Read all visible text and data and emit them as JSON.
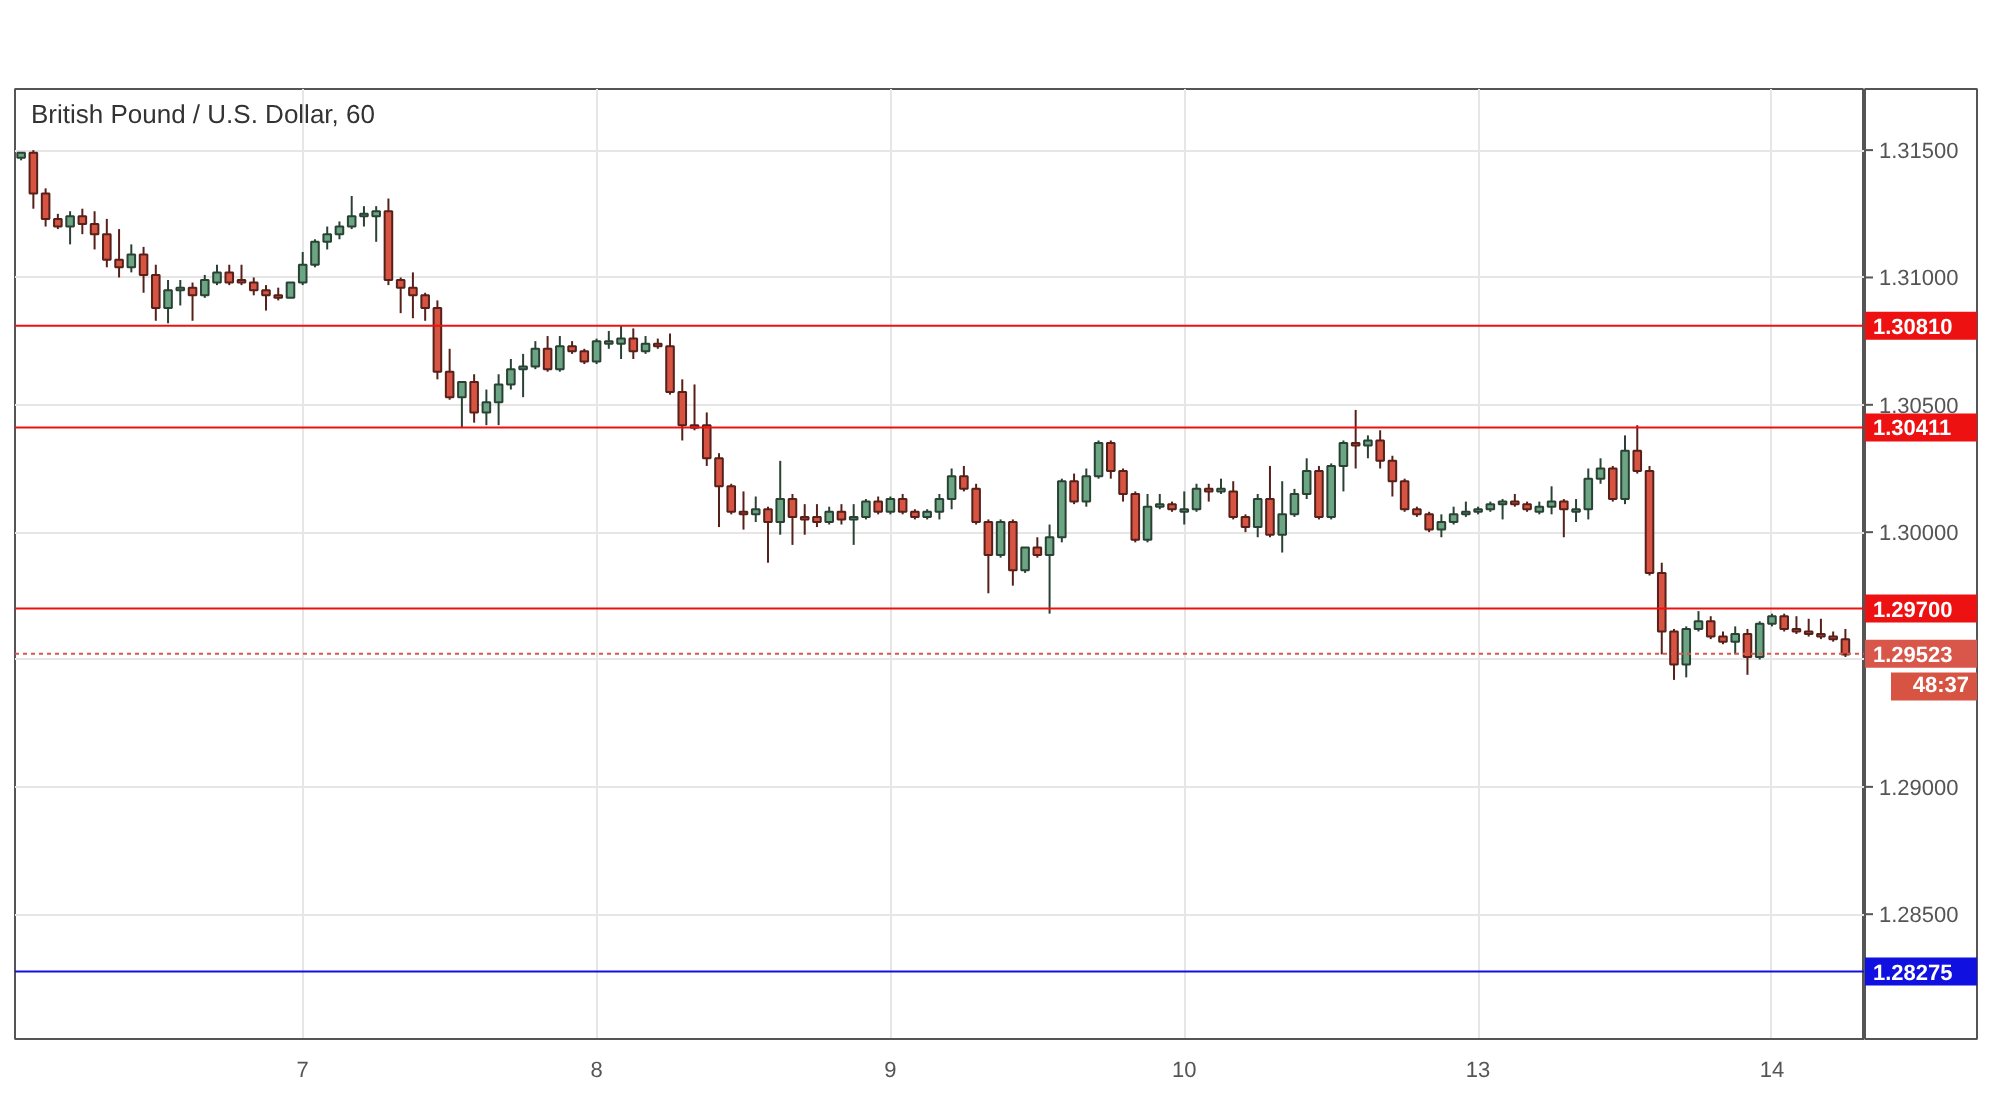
{
  "chart_data": {
    "type": "candlestick",
    "title": "British Pound / U.S. Dollar, 60",
    "categories": [
      null,
      null,
      null,
      null,
      null,
      null,
      null,
      null,
      null,
      null,
      null,
      null,
      null,
      null,
      null,
      null,
      null,
      null,
      null,
      null,
      null,
      null,
      null,
      "7",
      null,
      null,
      null,
      null,
      null,
      null,
      null,
      null,
      null,
      null,
      null,
      null,
      null,
      null,
      null,
      null,
      null,
      null,
      null,
      null,
      null,
      null,
      null,
      "8",
      null,
      null,
      null,
      null,
      null,
      null,
      null,
      null,
      null,
      null,
      null,
      null,
      null,
      null,
      null,
      null,
      null,
      null,
      null,
      null,
      null,
      null,
      null,
      "9",
      null,
      null,
      null,
      null,
      null,
      null,
      null,
      null,
      null,
      null,
      null,
      null,
      null,
      null,
      null,
      null,
      null,
      null,
      null,
      null,
      null,
      null,
      null,
      "10",
      null,
      null,
      null,
      null,
      null,
      null,
      null,
      null,
      null,
      null,
      null,
      null,
      null,
      null,
      null,
      null,
      null,
      null,
      null,
      null,
      null,
      null,
      null,
      "13",
      null,
      null,
      null,
      null,
      null,
      null,
      null,
      null,
      null,
      null,
      null,
      null,
      null,
      null,
      null,
      null,
      null,
      null,
      null,
      null,
      null,
      null,
      null,
      "14",
      null,
      null,
      null,
      null,
      null,
      null
    ],
    "ohlc": [
      [
        1.3147,
        1.3149,
        1.3146,
        1.3149
      ],
      [
        1.3149,
        1.315,
        1.3127,
        1.3133
      ],
      [
        1.3133,
        1.3135,
        1.312,
        1.3123
      ],
      [
        1.3123,
        1.3125,
        1.3119,
        1.312
      ],
      [
        1.312,
        1.3126,
        1.3113,
        1.3124
      ],
      [
        1.3124,
        1.3127,
        1.3117,
        1.3121
      ],
      [
        1.3121,
        1.3126,
        1.3111,
        1.3117
      ],
      [
        1.3117,
        1.3123,
        1.3104,
        1.3107
      ],
      [
        1.3107,
        1.3119,
        1.31,
        1.3104
      ],
      [
        1.3104,
        1.3113,
        1.3102,
        1.3109
      ],
      [
        1.3109,
        1.3112,
        1.3094,
        1.3101
      ],
      [
        1.3101,
        1.3105,
        1.3083,
        1.3088
      ],
      [
        1.3088,
        1.3099,
        1.3082,
        1.3095
      ],
      [
        1.3095,
        1.3099,
        1.3089,
        1.3096
      ],
      [
        1.3096,
        1.3098,
        1.3083,
        1.3093
      ],
      [
        1.3093,
        1.3101,
        1.3092,
        1.3099
      ],
      [
        1.3098,
        1.3105,
        1.3097,
        1.3102
      ],
      [
        1.3102,
        1.3105,
        1.3097,
        1.3098
      ],
      [
        1.3099,
        1.3105,
        1.3097,
        1.3098
      ],
      [
        1.3098,
        1.31,
        1.3093,
        1.3095
      ],
      [
        1.3095,
        1.3097,
        1.3087,
        1.3093
      ],
      [
        1.3093,
        1.3096,
        1.3091,
        1.3092
      ],
      [
        1.3092,
        1.3098,
        1.3092,
        1.3098
      ],
      [
        1.3098,
        1.311,
        1.3097,
        1.3105
      ],
      [
        1.3105,
        1.3115,
        1.3104,
        1.3114
      ],
      [
        1.3114,
        1.312,
        1.3111,
        1.3117
      ],
      [
        1.3117,
        1.3122,
        1.3115,
        1.312
      ],
      [
        1.312,
        1.3132,
        1.3119,
        1.3124
      ],
      [
        1.3124,
        1.3128,
        1.312,
        1.3125
      ],
      [
        1.3124,
        1.3128,
        1.3114,
        1.3126
      ],
      [
        1.3126,
        1.3131,
        1.3097,
        1.3099
      ],
      [
        1.3099,
        1.31,
        1.3086,
        1.3096
      ],
      [
        1.3096,
        1.3102,
        1.3084,
        1.3093
      ],
      [
        1.3093,
        1.3094,
        1.3083,
        1.3088
      ],
      [
        1.3088,
        1.3091,
        1.306,
        1.3063
      ],
      [
        1.3063,
        1.3072,
        1.3052,
        1.3053
      ],
      [
        1.3053,
        1.3059,
        1.3041,
        1.3059
      ],
      [
        1.3059,
        1.3062,
        1.3043,
        1.3047
      ],
      [
        1.3047,
        1.3056,
        1.3042,
        1.3051
      ],
      [
        1.3051,
        1.3062,
        1.3042,
        1.3058
      ],
      [
        1.3058,
        1.3068,
        1.3056,
        1.3064
      ],
      [
        1.3064,
        1.307,
        1.3053,
        1.3065
      ],
      [
        1.3065,
        1.3075,
        1.3064,
        1.3072
      ],
      [
        1.3072,
        1.3077,
        1.3063,
        1.3064
      ],
      [
        1.3064,
        1.3077,
        1.3063,
        1.3073
      ],
      [
        1.3073,
        1.3075,
        1.307,
        1.3071
      ],
      [
        1.3071,
        1.3072,
        1.3066,
        1.3067
      ],
      [
        1.3067,
        1.3076,
        1.3066,
        1.3075
      ],
      [
        1.3074,
        1.3079,
        1.3072,
        1.3075
      ],
      [
        1.3074,
        1.3081,
        1.3068,
        1.3076
      ],
      [
        1.3076,
        1.308,
        1.3068,
        1.3071
      ],
      [
        1.3071,
        1.3077,
        1.307,
        1.3074
      ],
      [
        1.3074,
        1.3076,
        1.3072,
        1.3073
      ],
      [
        1.3073,
        1.3078,
        1.3054,
        1.3055
      ],
      [
        1.3055,
        1.306,
        1.3036,
        1.3042
      ],
      [
        1.3042,
        1.3058,
        1.304,
        1.3041
      ],
      [
        1.3042,
        1.3047,
        1.3026,
        1.3029
      ],
      [
        1.3029,
        1.3031,
        1.3002,
        1.3018
      ],
      [
        1.3018,
        1.3019,
        1.3007,
        1.3008
      ],
      [
        1.3008,
        1.3016,
        1.3001,
        1.3007
      ],
      [
        1.3007,
        1.3014,
        1.3004,
        1.3009
      ],
      [
        1.3009,
        1.301,
        1.2988,
        1.3004
      ],
      [
        1.3004,
        1.3028,
        1.2999,
        1.3013
      ],
      [
        1.3013,
        1.3015,
        1.2995,
        1.3006
      ],
      [
        1.3006,
        1.3011,
        1.2999,
        1.3005
      ],
      [
        1.3006,
        1.3011,
        1.3002,
        1.3004
      ],
      [
        1.3004,
        1.301,
        1.3003,
        1.3008
      ],
      [
        1.3008,
        1.3011,
        1.3003,
        1.3005
      ],
      [
        1.3005,
        1.3011,
        1.2995,
        1.3006
      ],
      [
        1.3006,
        1.3013,
        1.3005,
        1.3012
      ],
      [
        1.3012,
        1.3014,
        1.3007,
        1.3008
      ],
      [
        1.3008,
        1.3014,
        1.3007,
        1.3013
      ],
      [
        1.3013,
        1.3015,
        1.3007,
        1.3008
      ],
      [
        1.3008,
        1.3009,
        1.3005,
        1.3006
      ],
      [
        1.3006,
        1.3009,
        1.3005,
        1.3008
      ],
      [
        1.3008,
        1.3015,
        1.3005,
        1.3013
      ],
      [
        1.3013,
        1.3025,
        1.3009,
        1.3022
      ],
      [
        1.3022,
        1.3026,
        1.3016,
        1.3017
      ],
      [
        1.3017,
        1.3019,
        1.3003,
        1.3004
      ],
      [
        1.3004,
        1.3005,
        1.2976,
        1.2991
      ],
      [
        1.2991,
        1.3005,
        1.299,
        1.3004
      ],
      [
        1.3004,
        1.3005,
        1.2979,
        1.2985
      ],
      [
        1.2985,
        1.2994,
        1.2984,
        1.2994
      ],
      [
        1.2994,
        1.2998,
        1.299,
        1.2991
      ],
      [
        1.2991,
        1.3003,
        1.2968,
        1.2998
      ],
      [
        1.2998,
        1.3021,
        1.2996,
        1.302
      ],
      [
        1.302,
        1.3023,
        1.3011,
        1.3012
      ],
      [
        1.3012,
        1.3025,
        1.301,
        1.3022
      ],
      [
        1.3022,
        1.3036,
        1.3021,
        1.3035
      ],
      [
        1.3035,
        1.3036,
        1.3021,
        1.3024
      ],
      [
        1.3024,
        1.3025,
        1.3012,
        1.3015
      ],
      [
        1.3015,
        1.3016,
        1.2996,
        1.2997
      ],
      [
        1.2997,
        1.3015,
        1.2996,
        1.301
      ],
      [
        1.301,
        1.3015,
        1.3009,
        1.3011
      ],
      [
        1.3011,
        1.3012,
        1.3008,
        1.3009
      ],
      [
        1.3008,
        1.3016,
        1.3003,
        1.3009
      ],
      [
        1.3009,
        1.3019,
        1.3008,
        1.3017
      ],
      [
        1.3017,
        1.3019,
        1.3012,
        1.3016
      ],
      [
        1.3016,
        1.3021,
        1.3015,
        1.3017
      ],
      [
        1.3016,
        1.302,
        1.3005,
        1.3006
      ],
      [
        1.3006,
        1.3007,
        1.3,
        1.3002
      ],
      [
        1.3002,
        1.3015,
        1.2998,
        1.3013
      ],
      [
        1.3013,
        1.3026,
        1.2998,
        1.2999
      ],
      [
        1.2999,
        1.302,
        1.2992,
        1.3007
      ],
      [
        1.3007,
        1.3017,
        1.3006,
        1.3015
      ],
      [
        1.3015,
        1.3029,
        1.3013,
        1.3024
      ],
      [
        1.3024,
        1.3026,
        1.3005,
        1.3006
      ],
      [
        1.3006,
        1.3027,
        1.3005,
        1.3026
      ],
      [
        1.3026,
        1.3036,
        1.3016,
        1.3035
      ],
      [
        1.3035,
        1.3048,
        1.3025,
        1.3034
      ],
      [
        1.3034,
        1.3038,
        1.3029,
        1.3036
      ],
      [
        1.3036,
        1.304,
        1.3025,
        1.3028
      ],
      [
        1.3028,
        1.303,
        1.3014,
        1.302
      ],
      [
        1.302,
        1.3021,
        1.3008,
        1.3009
      ],
      [
        1.3009,
        1.301,
        1.3006,
        1.3007
      ],
      [
        1.3007,
        1.3008,
        1.3,
        1.3001
      ],
      [
        1.3001,
        1.3007,
        1.2998,
        1.3004
      ],
      [
        1.3004,
        1.301,
        1.3003,
        1.3007
      ],
      [
        1.3007,
        1.3012,
        1.3006,
        1.3008
      ],
      [
        1.3008,
        1.301,
        1.3007,
        1.3009
      ],
      [
        1.3009,
        1.3012,
        1.3008,
        1.3011
      ],
      [
        1.3011,
        1.3013,
        1.3005,
        1.3012
      ],
      [
        1.3012,
        1.3015,
        1.301,
        1.3011
      ],
      [
        1.3011,
        1.3012,
        1.3008,
        1.3009
      ],
      [
        1.3008,
        1.3012,
        1.3007,
        1.301
      ],
      [
        1.301,
        1.3018,
        1.3007,
        1.3012
      ],
      [
        1.3012,
        1.3013,
        1.2998,
        1.3009
      ],
      [
        1.3008,
        1.3013,
        1.3004,
        1.3009
      ],
      [
        1.3009,
        1.3025,
        1.3005,
        1.3021
      ],
      [
        1.3021,
        1.3029,
        1.3019,
        1.3025
      ],
      [
        1.3025,
        1.3026,
        1.3012,
        1.3013
      ],
      [
        1.3013,
        1.3038,
        1.3011,
        1.3032
      ],
      [
        1.3032,
        1.3042,
        1.3023,
        1.3024
      ],
      [
        1.3024,
        1.3026,
        1.2983,
        1.2984
      ],
      [
        1.2984,
        1.2988,
        1.2952,
        1.2961
      ],
      [
        1.2961,
        1.2962,
        1.2942,
        1.2948
      ],
      [
        1.2948,
        1.2963,
        1.2943,
        1.2962
      ],
      [
        1.2962,
        1.2969,
        1.2961,
        1.2965
      ],
      [
        1.2965,
        1.2967,
        1.2958,
        1.2959
      ],
      [
        1.2959,
        1.2961,
        1.2956,
        1.2957
      ],
      [
        1.2957,
        1.2963,
        1.2952,
        1.296
      ],
      [
        1.296,
        1.2962,
        1.2944,
        1.2951
      ],
      [
        1.2951,
        1.2965,
        1.295,
        1.2964
      ],
      [
        1.2964,
        1.2968,
        1.2963,
        1.2967
      ],
      [
        1.2967,
        1.2968,
        1.2961,
        1.2962
      ],
      [
        1.2962,
        1.2967,
        1.296,
        1.2961
      ],
      [
        1.2961,
        1.2966,
        1.2959,
        1.296
      ],
      [
        1.296,
        1.2966,
        1.2958,
        1.2959
      ],
      [
        1.2959,
        1.2961,
        1.2957,
        1.2958
      ],
      [
        1.2958,
        1.2962,
        1.2951,
        1.2952
      ]
    ],
    "colors": [
      "#6ba583",
      "#d75442",
      "#d75442",
      "#d75442",
      "#6ba583",
      "#d75442",
      "#d75442",
      "#d75442",
      "#d75442",
      "#6ba583",
      "#d75442",
      "#d75442",
      "#6ba583",
      "#6ba583",
      "#d75442",
      "#6ba583",
      "#6ba583",
      "#d75442",
      "#d75442",
      "#d75442",
      "#d75442",
      "#d75442",
      "#6ba583",
      "#6ba583",
      "#6ba583",
      "#6ba583",
      "#6ba583",
      "#6ba583",
      "#6ba583",
      "#6ba583",
      "#d75442",
      "#d75442",
      "#d75442",
      "#d75442",
      "#d75442",
      "#d75442",
      "#6ba583",
      "#d75442",
      "#6ba583",
      "#6ba583",
      "#6ba583",
      "#6ba583",
      "#6ba583",
      "#d75442",
      "#6ba583",
      "#d75442",
      "#d75442",
      "#6ba583",
      "#6ba583",
      "#6ba583",
      "#d75442",
      "#6ba583",
      "#d75442",
      "#d75442",
      "#d75442",
      "#d75442",
      "#d75442",
      "#d75442",
      "#d75442",
      "#d75442",
      "#6ba583",
      "#d75442",
      "#6ba583",
      "#d75442",
      "#d75442",
      "#d75442",
      "#6ba583",
      "#d75442",
      "#6ba583",
      "#6ba583",
      "#d75442",
      "#6ba583",
      "#d75442",
      "#d75442",
      "#6ba583",
      "#6ba583",
      "#6ba583",
      "#d75442",
      "#d75442",
      "#d75442",
      "#6ba583",
      "#d75442",
      "#6ba583",
      "#d75442",
      "#6ba583",
      "#6ba583",
      "#d75442",
      "#6ba583",
      "#6ba583",
      "#d75442",
      "#d75442",
      "#d75442",
      "#6ba583",
      "#6ba583",
      "#d75442",
      "#6ba583",
      "#6ba583",
      "#d75442",
      "#6ba583",
      "#d75442",
      "#d75442",
      "#6ba583",
      "#d75442",
      "#6ba583",
      "#6ba583",
      "#6ba583",
      "#d75442",
      "#6ba583",
      "#6ba583",
      "#d75442",
      "#6ba583",
      "#d75442",
      "#d75442",
      "#d75442",
      "#d75442",
      "#d75442",
      "#6ba583",
      "#6ba583",
      "#6ba583",
      "#6ba583",
      "#6ba583",
      "#6ba583",
      "#d75442",
      "#d75442",
      "#6ba583",
      "#6ba583",
      "#d75442",
      "#6ba583",
      "#6ba583",
      "#6ba583",
      "#d75442",
      "#6ba583",
      "#d75442",
      "#d75442",
      "#d75442",
      "#d75442",
      "#6ba583",
      "#6ba583",
      "#d75442",
      "#d75442",
      "#6ba583",
      "#d75442",
      "#6ba583",
      "#6ba583",
      "#d75442",
      "#d75442",
      "#d75442",
      "#d75442",
      "#d75442",
      "#d75442"
    ],
    "ylim": [
      1.2801,
      1.3174
    ],
    "yticks": [
      {
        "value": 1.285,
        "label": "1.28500"
      },
      {
        "value": 1.29,
        "label": "1.29000"
      },
      {
        "value": 1.295,
        "label": null
      },
      {
        "value": 1.3,
        "label": "1.30000"
      },
      {
        "value": 1.305,
        "label": "1.30500"
      },
      {
        "value": 1.31,
        "label": "1.31000"
      },
      {
        "value": 1.315,
        "label": "1.31500"
      }
    ],
    "grid": true,
    "ref_lines": [
      {
        "axis": "y",
        "value": 1.3081,
        "label": "1.30810",
        "color": "#ee1111"
      },
      {
        "axis": "y",
        "value": 1.30411,
        "label": "1.30411",
        "color": "#ee1111"
      },
      {
        "axis": "y",
        "value": 1.297,
        "label": "1.29700",
        "color": "#ee1111"
      },
      {
        "axis": "y",
        "value": 1.29523,
        "label": "1.29523",
        "color": "#d9574a",
        "line_style": "dotted"
      },
      {
        "axis": "y",
        "value": 1.28275,
        "label": "1.28275",
        "color": "#1010e0"
      }
    ],
    "annotations": [
      "48:37"
    ]
  }
}
